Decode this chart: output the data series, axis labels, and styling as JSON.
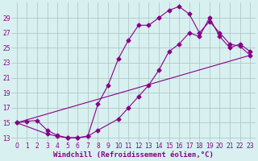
{
  "xlabel": "Windchill (Refroidissement éolien,°C)",
  "bg_color": "#d8f0f0",
  "grid_color": "#b0c8c8",
  "line_color": "#880088",
  "line1_x": [
    0,
    1,
    2,
    3,
    4,
    5,
    6,
    7,
    8,
    9,
    10,
    11,
    12,
    13,
    14,
    15,
    16,
    17,
    18,
    19,
    20,
    21,
    22,
    23
  ],
  "line1_y": [
    15,
    15.2,
    15.3,
    14.0,
    13.3,
    13.0,
    13.0,
    13.2,
    17.5,
    20.0,
    23.5,
    26.0,
    28.0,
    28.0,
    29.0,
    30.0,
    30.5,
    29.5,
    27.0,
    28.5,
    27.0,
    25.5,
    25.2,
    24.0
  ],
  "line2_x": [
    0,
    3,
    4,
    5,
    6,
    7,
    8,
    10,
    11,
    12,
    13,
    14,
    15,
    16,
    17,
    18,
    19,
    20,
    21,
    22,
    23
  ],
  "line2_y": [
    15,
    13.5,
    13.2,
    13.0,
    13.0,
    13.2,
    14.0,
    15.5,
    17.0,
    18.5,
    20.0,
    22.0,
    24.5,
    25.5,
    27.0,
    26.5,
    29.0,
    26.5,
    25.0,
    25.5,
    24.5
  ],
  "line3_x": [
    0,
    23
  ],
  "line3_y": [
    15,
    24
  ],
  "xlim": [
    -0.5,
    23.5
  ],
  "ylim": [
    12.5,
    31
  ],
  "xticks": [
    0,
    1,
    2,
    3,
    4,
    5,
    6,
    7,
    8,
    9,
    10,
    11,
    12,
    13,
    14,
    15,
    16,
    17,
    18,
    19,
    20,
    21,
    22,
    23
  ],
  "yticks": [
    13,
    15,
    17,
    19,
    21,
    23,
    25,
    27,
    29
  ],
  "tick_fontsize": 5.5,
  "label_fontsize": 6.5
}
